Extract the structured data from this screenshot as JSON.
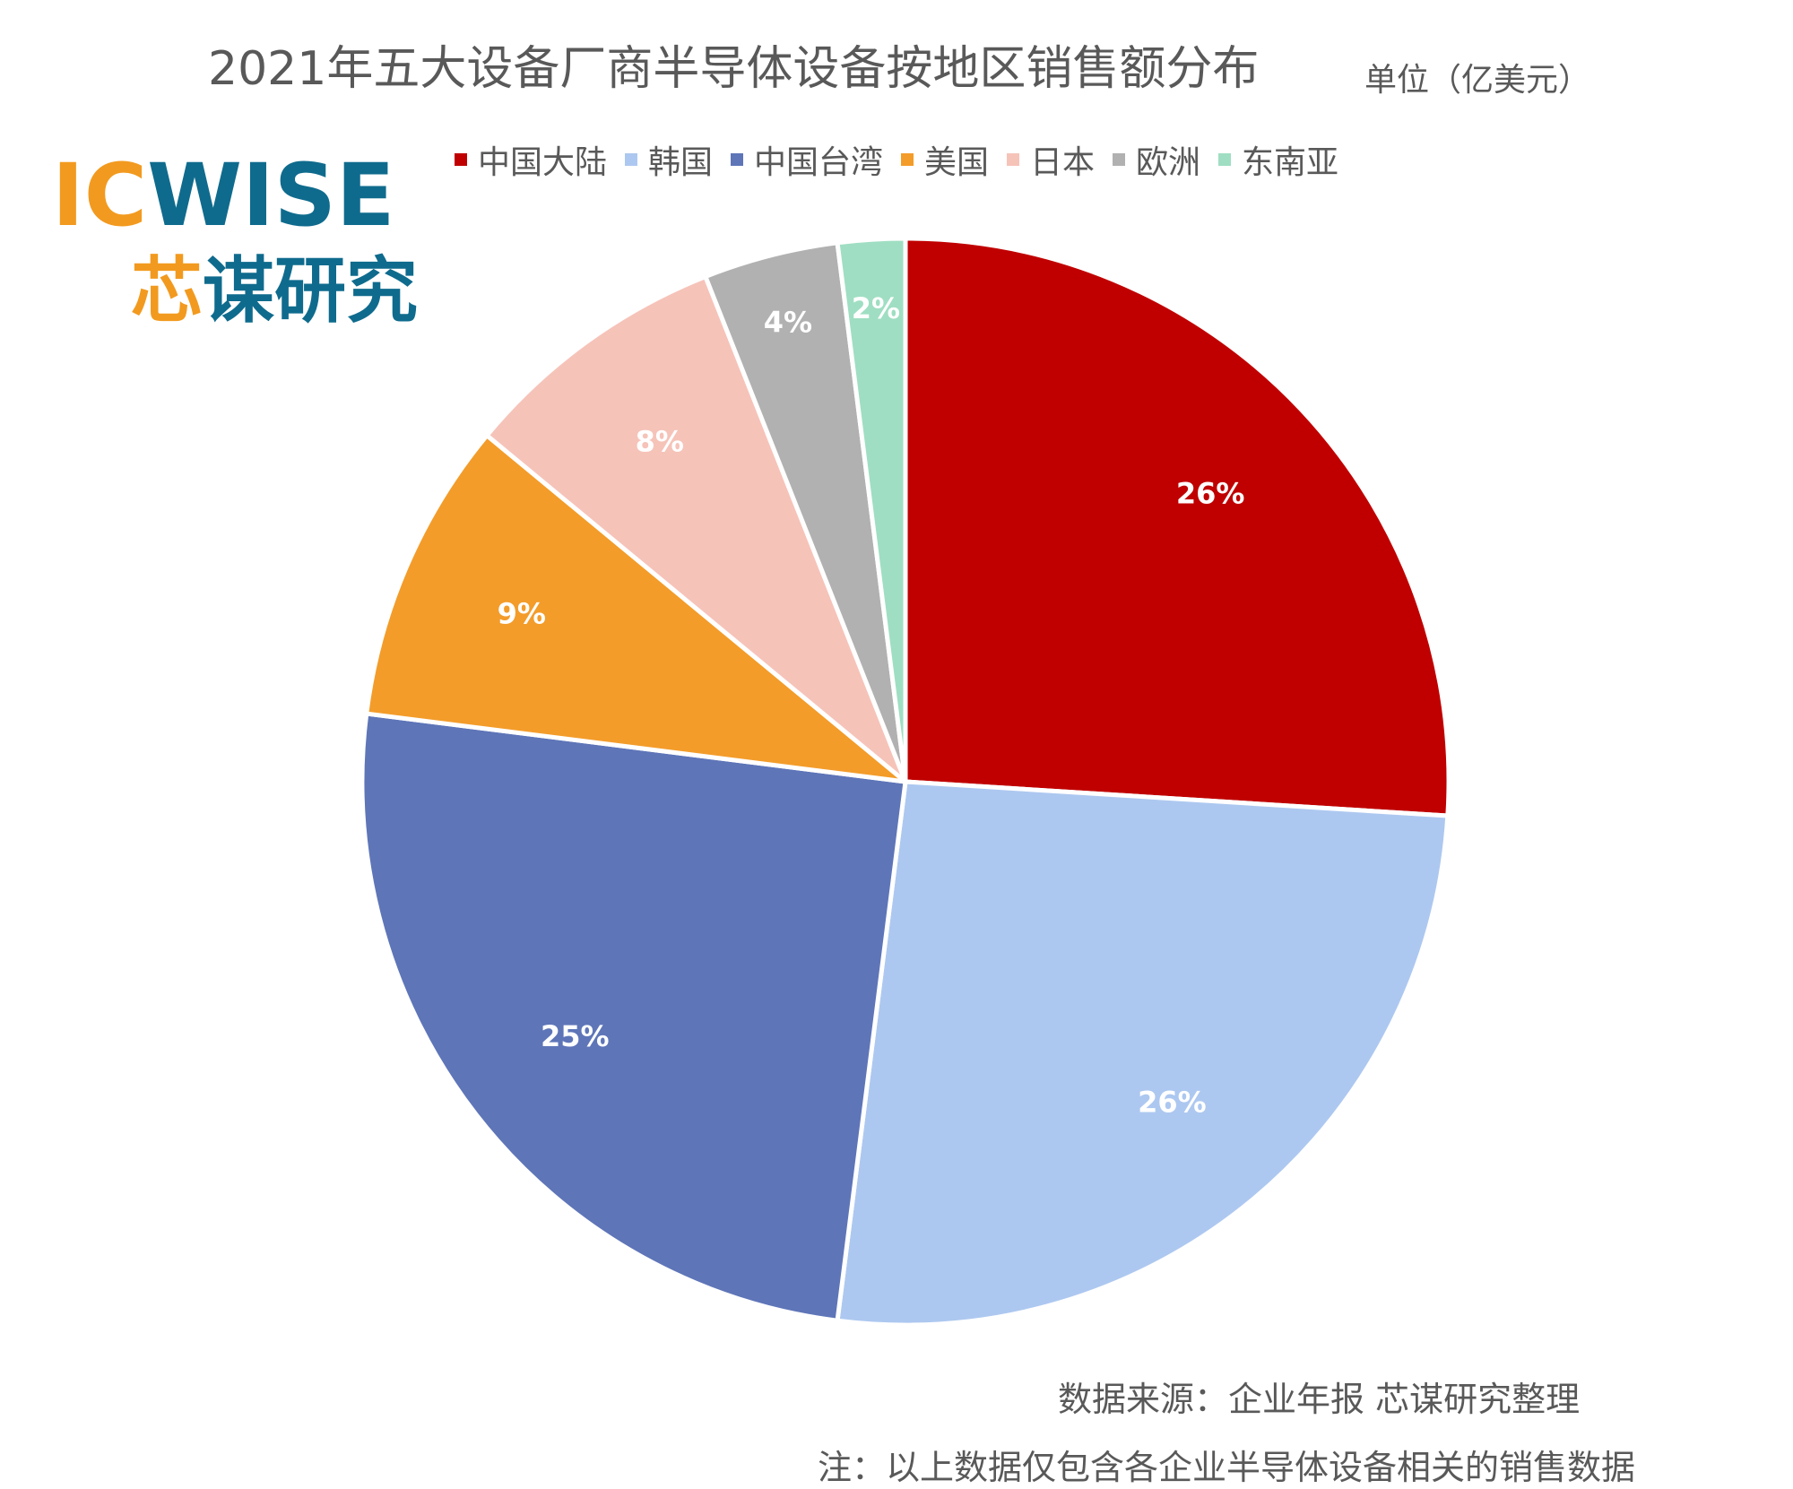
{
  "title": "2021年五大设备厂商半导体设备按地区销售额分布",
  "unit": "单位（亿美元）",
  "logo": {
    "text_en": "ICWISE",
    "text_cn": "芯谋研究"
  },
  "source": "数据来源：企业年报 芯谋研究整理",
  "note": "注：以上数据仅包含各企业半导体设备相关的销售数据",
  "chart_data": {
    "type": "pie",
    "title": "2021年五大设备厂商半导体设备按地区销售额分布",
    "unit": "单位（亿美元）",
    "categories": [
      "中国大陆",
      "韩国",
      "中国台湾",
      "美国",
      "日本",
      "欧洲",
      "东南亚"
    ],
    "values": [
      26,
      26,
      25,
      9,
      8,
      4,
      2
    ],
    "labels": [
      "26%",
      "26%",
      "25%",
      "9%",
      "8%",
      "4%",
      "2%"
    ],
    "colors": [
      "#c00000",
      "#adc8f0",
      "#5e75b8",
      "#f39c2a",
      "#f6c3b9",
      "#b1b1b1",
      "#9fdec2"
    ],
    "start_angle": "12 o'clock",
    "direction": "clockwise",
    "legend_position": "top"
  }
}
